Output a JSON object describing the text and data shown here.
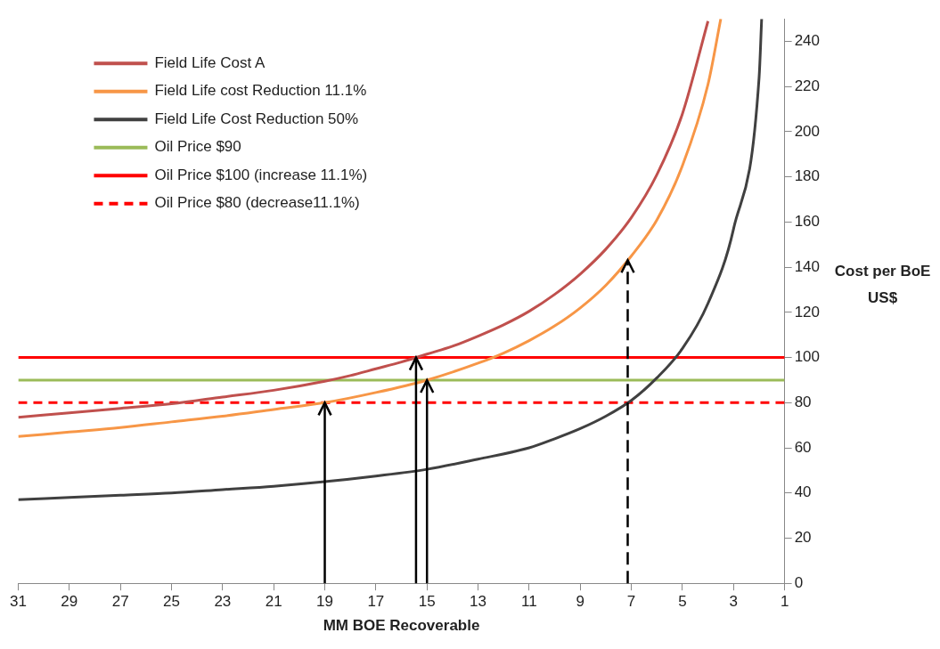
{
  "chart_data": {
    "type": "line",
    "xlabel": "MM BOE Recoverable",
    "ylabel": "Cost per BoE US$",
    "xlim": [
      31,
      1
    ],
    "xticks": [
      31,
      29,
      27,
      25,
      23,
      21,
      19,
      17,
      15,
      13,
      11,
      9,
      7,
      5,
      3,
      1
    ],
    "ylim": [
      0,
      250
    ],
    "yticks": [
      0,
      20,
      40,
      60,
      80,
      100,
      120,
      140,
      160,
      180,
      200,
      220,
      240
    ],
    "legend": "top left",
    "grid": false,
    "marker": "none",
    "series": [
      {
        "name": "Field Life Cost A",
        "color": "#c0504d",
        "x": [
          31,
          29,
          27,
          25,
          23,
          21,
          19,
          18,
          17,
          16,
          15,
          14,
          13,
          12,
          11,
          10,
          9,
          8,
          7,
          6,
          5,
          4
        ],
        "values": [
          73.5,
          75.5,
          77.5,
          79.5,
          82.5,
          85.5,
          89.5,
          92,
          95,
          98,
          101.5,
          105,
          109.5,
          114.5,
          120.5,
          128,
          137,
          148,
          162,
          181,
          208,
          249
        ]
      },
      {
        "name": "Field Life cost Reduction 11.1%",
        "color": "#f79646",
        "x": [
          31,
          29,
          27,
          25,
          23,
          21,
          19,
          17,
          15,
          13,
          12,
          11,
          10,
          9,
          8,
          7,
          6,
          5,
          4,
          3.5
        ],
        "values": [
          65,
          67,
          69,
          71.5,
          74,
          77,
          80,
          84.5,
          90,
          97.5,
          102,
          107.5,
          114,
          122,
          132,
          145,
          161,
          185,
          221,
          250
        ]
      },
      {
        "name": "Field Life Cost Reduction 50%",
        "color": "#404040",
        "x": [
          31,
          29,
          27,
          25,
          23,
          21,
          19,
          17,
          15,
          13,
          11,
          10,
          9,
          8,
          7,
          6,
          5,
          4,
          3,
          2,
          1.9
        ],
        "values": [
          37,
          38,
          39,
          40,
          41.5,
          43,
          45,
          47.5,
          50.5,
          55,
          60,
          64,
          68.5,
          74,
          81,
          91,
          104,
          124,
          157,
          224,
          250
        ]
      },
      {
        "name": "Oil Price $90",
        "color": "#9bbb59",
        "x": [
          31,
          1
        ],
        "values": [
          90,
          90
        ]
      },
      {
        "name": "Oil Price $100 (increase 11.1%)",
        "color": "#ff0000",
        "x": [
          31,
          1
        ],
        "values": [
          100,
          100
        ]
      },
      {
        "name": "Oil Price $80 (decrease11.1%)",
        "color": "#ff0000",
        "line_style": "dashed",
        "x": [
          31,
          1
        ],
        "values": [
          80,
          80
        ]
      }
    ]
  }
}
